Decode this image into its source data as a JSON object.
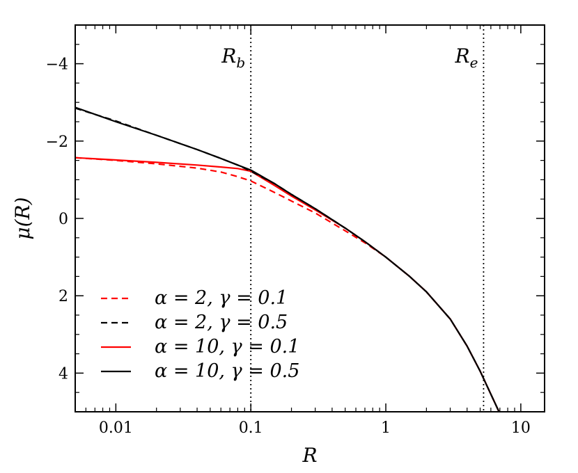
{
  "chart_data": {
    "type": "line",
    "xlabel": "R",
    "ylabel": "μ(R)",
    "xscale": "log",
    "xlim": [
      0.005,
      15
    ],
    "ylim": [
      5,
      -5
    ],
    "y_inverted": true,
    "xticks": [
      {
        "value": 0.01,
        "label": "0.01"
      },
      {
        "value": 0.1,
        "label": "0.1"
      },
      {
        "value": 1,
        "label": "1"
      },
      {
        "value": 10,
        "label": "10"
      }
    ],
    "yticks": [
      {
        "value": -4,
        "label": "−4"
      },
      {
        "value": -2,
        "label": "−2"
      },
      {
        "value": 0,
        "label": "0"
      },
      {
        "value": 2,
        "label": "2"
      },
      {
        "value": 4,
        "label": "4"
      }
    ],
    "legend_position": "bottom-left",
    "vlines": [
      {
        "x": 0.1,
        "label": "R",
        "sub": "b",
        "style": "dotted"
      },
      {
        "x": 5.3,
        "label": "R",
        "sub": "e",
        "style": "dotted"
      }
    ],
    "series": [
      {
        "name": "α = 2, γ = 0.1",
        "color": "#ff0000",
        "style": "dashed",
        "x": [
          0.005,
          0.01,
          0.02,
          0.04,
          0.06,
          0.08,
          0.1,
          0.15,
          0.2,
          0.3,
          0.5,
          0.7,
          1,
          1.5,
          2,
          3,
          4,
          5,
          6.9
        ],
        "y": [
          -1.57,
          -1.5,
          -1.41,
          -1.3,
          -1.2,
          -1.08,
          -0.97,
          -0.67,
          -0.45,
          -0.14,
          0.32,
          0.63,
          1.0,
          1.5,
          1.9,
          2.6,
          3.3,
          3.95,
          5.0
        ]
      },
      {
        "name": "α = 2, γ = 0.5",
        "color": "#000000",
        "style": "dashed",
        "x": [
          0.005,
          0.01,
          0.02,
          0.04,
          0.06,
          0.08,
          0.1,
          0.15,
          0.2,
          0.3,
          0.5,
          0.7,
          1,
          1.5,
          2,
          3,
          4,
          5,
          6.9
        ],
        "y": [
          -2.85,
          -2.52,
          -2.15,
          -1.78,
          -1.55,
          -1.38,
          -1.22,
          -0.9,
          -0.62,
          -0.25,
          0.25,
          0.6,
          1.0,
          1.5,
          1.9,
          2.6,
          3.3,
          3.95,
          5.0
        ]
      },
      {
        "name": "α = 10, γ = 0.1",
        "color": "#ff0000",
        "style": "solid",
        "x": [
          0.005,
          0.01,
          0.02,
          0.04,
          0.06,
          0.08,
          0.1,
          0.15,
          0.2,
          0.3,
          0.5,
          0.7,
          1,
          1.5,
          2,
          3,
          4,
          5,
          6.9
        ],
        "y": [
          -1.57,
          -1.51,
          -1.45,
          -1.38,
          -1.33,
          -1.29,
          -1.22,
          -0.85,
          -0.58,
          -0.22,
          0.25,
          0.6,
          1.0,
          1.5,
          1.9,
          2.6,
          3.3,
          3.95,
          5.0
        ]
      },
      {
        "name": "α = 10, γ = 0.5",
        "color": "#000000",
        "style": "solid",
        "x": [
          0.005,
          0.01,
          0.02,
          0.04,
          0.06,
          0.08,
          0.1,
          0.15,
          0.2,
          0.3,
          0.5,
          0.7,
          1,
          1.5,
          2,
          3,
          4,
          5,
          6.9
        ],
        "y": [
          -2.87,
          -2.5,
          -2.15,
          -1.78,
          -1.55,
          -1.38,
          -1.25,
          -0.9,
          -0.62,
          -0.25,
          0.25,
          0.6,
          1.0,
          1.5,
          1.9,
          2.6,
          3.3,
          3.95,
          5.0
        ]
      }
    ]
  }
}
